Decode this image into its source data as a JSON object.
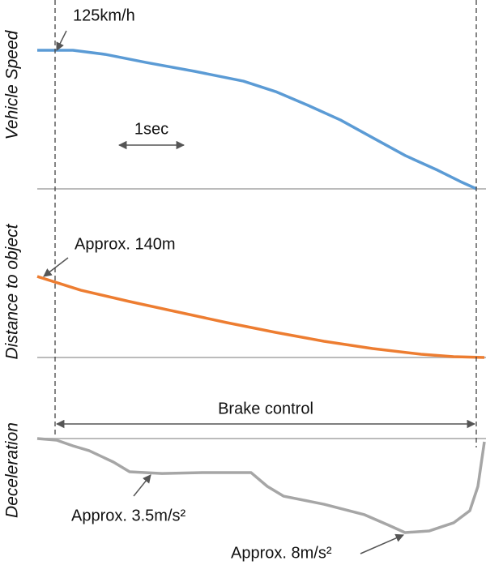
{
  "chart_data": [
    {
      "type": "line",
      "y_label": "Vehicle Speed",
      "color": "#5b9bd5",
      "xlim": [
        0,
        6.9
      ],
      "ylim": [
        0,
        140
      ],
      "x": [
        0,
        0.55,
        1.05,
        1.68,
        2.43,
        3.18,
        3.68,
        4.18,
        4.68,
        5.18,
        5.68,
        6.18,
        6.53,
        6.78
      ],
      "values": [
        125,
        125,
        121.3,
        114,
        106,
        97.2,
        87.7,
        75.3,
        62.1,
        46,
        30,
        16.8,
        6.6,
        0
      ],
      "annotations": [
        {
          "text": "125km/h",
          "x": 0.3,
          "y": 125
        }
      ],
      "time_scale": {
        "label": "1sec",
        "length": 1
      }
    },
    {
      "type": "line",
      "y_label": "Distance to object",
      "color": "#ed7d31",
      "xlim": [
        0,
        6.9
      ],
      "ylim": [
        0,
        170
      ],
      "x": [
        0,
        0.675,
        1.425,
        2.175,
        2.925,
        3.675,
        4.425,
        5.175,
        5.925,
        6.425,
        6.9
      ],
      "values": [
        140,
        116.2,
        96.6,
        78.4,
        60.2,
        43.4,
        28,
        15.4,
        5.6,
        1.4,
        0
      ],
      "annotations": [
        {
          "text": "Approx. 140m",
          "x": 0.1,
          "y": 140
        }
      ]
    },
    {
      "type": "line",
      "y_label": "Deceleration",
      "color": "#a6a6a6",
      "xlim": [
        0,
        6.9
      ],
      "ylim": [
        9,
        0
      ],
      "x": [
        0,
        0.3,
        0.55,
        0.8,
        1.175,
        1.425,
        1.925,
        2.55,
        3.3,
        3.55,
        3.8,
        4.425,
        5.05,
        5.425,
        5.675,
        6.05,
        6.425,
        6.675,
        6.8,
        6.9
      ],
      "values": [
        0,
        0.14,
        0.62,
        1.03,
        2,
        2.83,
        2.97,
        2.9,
        2.9,
        4.07,
        4.9,
        5.59,
        6.48,
        7.38,
        8,
        7.86,
        7.17,
        6.14,
        4.07,
        0.28
      ],
      "annotations": [
        {
          "text": "Approx. 3.5m/s²",
          "x": 1.75,
          "y": 3.1
        },
        {
          "text": "Approx. 8m/s²",
          "x": 5.65,
          "y": 8.2
        }
      ],
      "brake_control": {
        "label": "Brake control",
        "start": 0.275,
        "end": 6.775
      }
    }
  ]
}
